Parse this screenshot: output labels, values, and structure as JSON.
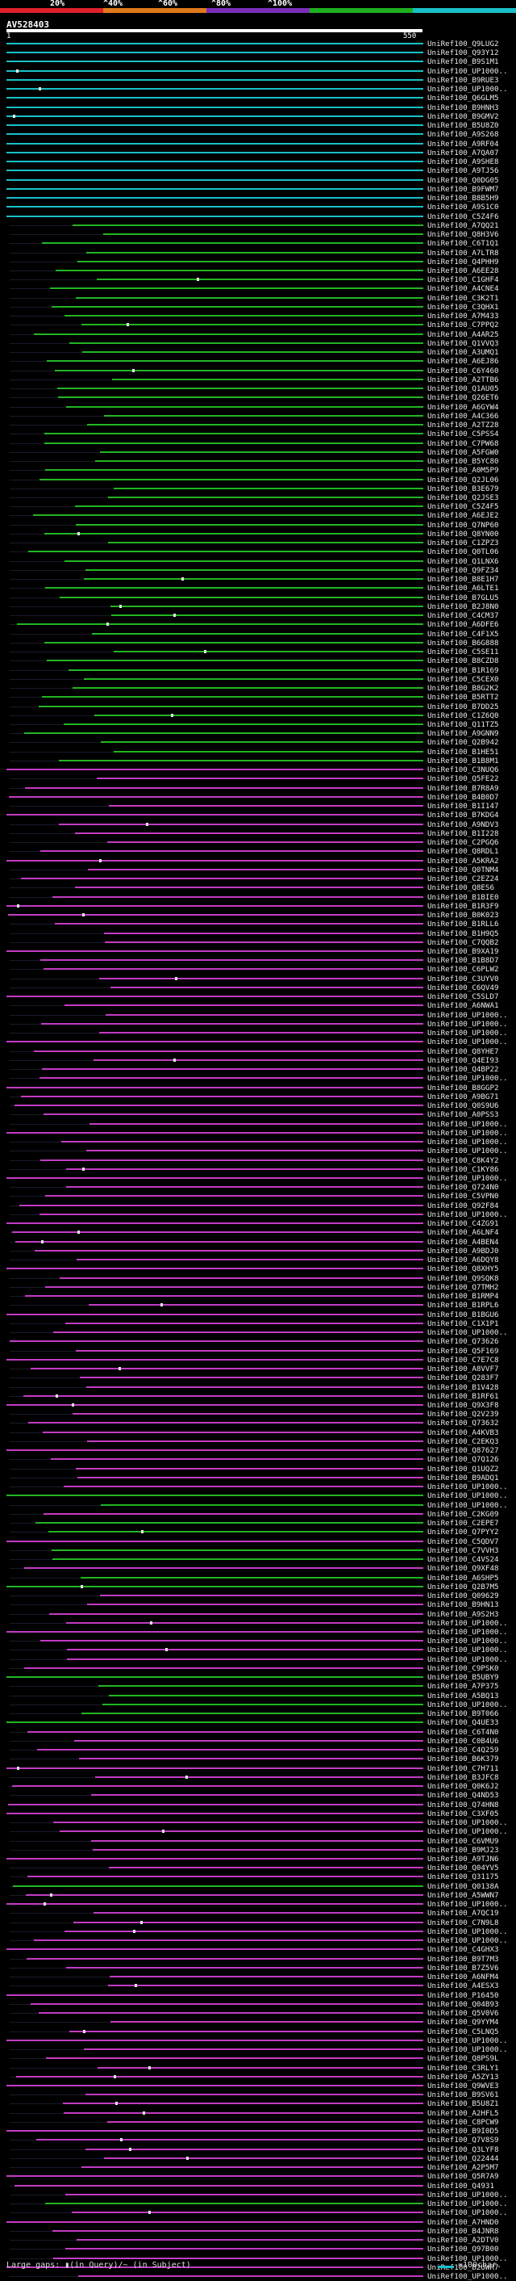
{
  "scale": {
    "labels": [
      "20%",
      "^40%",
      "^60%",
      "^80%",
      "^100%"
    ],
    "colors": [
      "#e0202a",
      "#e07a1a",
      "#7b2fb8",
      "#1fb01f",
      "#19c0c8"
    ]
  },
  "query": {
    "name": "AV528403",
    "start": "1",
    "end": "550"
  },
  "colors": {
    "high": "#19c0c8",
    "mid": "#22b522",
    "low": "#c23cc2",
    "gap": "#e8e8e8"
  },
  "hits": [
    "UniRef100_Q9LUG2",
    "UniRef100_Q93Y12",
    "UniRef100_B9S1M1",
    "UniRef100_UP1000..",
    "UniRef100_B9RUE3",
    "UniRef100_UP1000..",
    "UniRef100_Q6GLM5",
    "UniRef100_B9HNH3",
    "UniRef100_B9GMV2",
    "UniRef100_B5U8Z0",
    "UniRef100_A9S268",
    "UniRef100_A9RF04",
    "UniRef100_A7QA07",
    "UniRef100_A9SHE8",
    "UniRef100_A9TJ56",
    "UniRef100_Q0DG05",
    "UniRef100_B9FWM7",
    "UniRef100_B8B5H9",
    "UniRef100_A9S1C0",
    "UniRef100_C5Z4F6",
    "UniRef100_A7QQ21",
    "UniRef100_Q8H3V6",
    "UniRef100_C6T1Q1",
    "UniRef100_A7LTR8",
    "UniRef100_Q4PHH9",
    "UniRef100_A6EE28",
    "UniRef100_C1GHF4",
    "UniRef100_A4CNE4",
    "UniRef100_C3K2T1",
    "UniRef100_C3QHX1",
    "UniRef100_A7M433",
    "UniRef100_C7PPQ2",
    "UniRef100_A4AR25",
    "UniRef100_Q1VVQ3",
    "UniRef100_A3UMQ1",
    "UniRef100_A6EJ86",
    "UniRef100_C6Y460",
    "UniRef100_A2TTB6",
    "UniRef100_Q1AU05",
    "UniRef100_Q26ET6",
    "UniRef100_A6GYW4",
    "UniRef100_A4C366",
    "UniRef100_A2TZ28",
    "UniRef100_C5PSS4",
    "UniRef100_C7PW68",
    "UniRef100_A5FGW0",
    "UniRef100_B5YC80",
    "UniRef100_A0M5P9",
    "UniRef100_Q2JL06",
    "UniRef100_B3E679",
    "UniRef100_Q2JSE3",
    "UniRef100_C5Z4F5",
    "UniRef100_A6EJE2",
    "UniRef100_Q7NP60",
    "UniRef100_Q8YN00",
    "UniRef100_C1ZPZ3",
    "UniRef100_Q0TL06",
    "UniRef100_Q1LNX6",
    "UniRef100_Q9FZ34",
    "UniRef100_B8E1H7",
    "UniRef100_A6LTE1",
    "UniRef100_B7GLU5",
    "UniRef100_B2J8N0",
    "UniRef100_C4CM37",
    "UniRef100_A6DFE6",
    "UniRef100_C4F1X5",
    "UniRef100_B6G888",
    "UniRef100_C5SE11",
    "UniRef100_B8CZD8",
    "UniRef100_B1R169",
    "UniRef100_C5CEX0",
    "UniRef100_B8G2K2",
    "UniRef100_B5RTT2",
    "UniRef100_B7DD25",
    "UniRef100_C1Z6Q0",
    "UniRef100_Q11TZ5",
    "UniRef100_A9GNN9",
    "UniRef100_Q2B942",
    "UniRef100_B1HE51",
    "UniRef100_B1B8M1",
    "UniRef100_C3NUQ6",
    "UniRef100_Q5FE22",
    "UniRef100_B7R8A9",
    "UniRef100_B4B0D7",
    "UniRef100_B1I147",
    "UniRef100_B7KDG4",
    "UniRef100_A9NDV3",
    "UniRef100_B1I228",
    "UniRef100_C2PGQ6",
    "UniRef100_Q8RDL1",
    "UniRef100_A5KRA2",
    "UniRef100_Q0TNM4",
    "UniRef100_C2EZ24",
    "UniRef100_Q8ES6",
    "UniRef100_B1BIE0",
    "UniRef100_B1R3F9",
    "UniRef100_B0K023",
    "UniRef100_B1RLL6",
    "UniRef100_B1H9Q5",
    "UniRef100_C7QQB2",
    "UniRef100_B9XA19",
    "UniRef100_B1B8D7",
    "UniRef100_C6PLW2",
    "UniRef100_C3UYV0",
    "UniRef100_C6QV49",
    "UniRef100_C5SLD7",
    "UniRef100_A6NWA1",
    "UniRef100_UP1000..",
    "UniRef100_UP1000..",
    "UniRef100_UP1000..",
    "UniRef100_UP1000..",
    "UniRef100_Q8YHE7",
    "UniRef100_Q4EI93",
    "UniRef100_Q4BP22",
    "UniRef100_UP1000..",
    "UniRef100_B8GGP2",
    "UniRef100_A9BG71",
    "UniRef100_Q0S9U6",
    "UniRef100_A0PSS3",
    "UniRef100_UP1000..",
    "UniRef100_UP1000..",
    "UniRef100_UP1000..",
    "UniRef100_UP1000..",
    "UniRef100_C8K4Y2",
    "UniRef100_C1KY86",
    "UniRef100_UP1000..",
    "UniRef100_Q724N0",
    "UniRef100_C5VPN0",
    "UniRef100_Q92F84",
    "UniRef100_UP1000..",
    "UniRef100_C4ZG91",
    "UniRef100_A6LNF4",
    "UniRef100_A4BEN4",
    "UniRef100_A9BDJ0",
    "UniRef100_A6DQY8",
    "UniRef100_Q8XHY5",
    "UniRef100_Q9SQK8",
    "UniRef100_Q7TMH2",
    "UniRef100_B1RMP4",
    "UniRef100_B1RPL6",
    "UniRef100_B1BGU6",
    "UniRef100_C1X1P1",
    "UniRef100_UP1000..",
    "UniRef100_Q73626",
    "UniRef100_Q5F169",
    "UniRef100_C7E7C8",
    "UniRef100_A8VVF7",
    "UniRef100_Q283F7",
    "UniRef100_B1V428",
    "UniRef100_B1RF61",
    "UniRef100_Q9X3F8",
    "UniRef100_Q2V239",
    "UniRef100_Q73632",
    "UniRef100_A4KVB3",
    "UniRef100_C2EKQ3",
    "UniRef100_Q87627",
    "UniRef100_Q7Q126",
    "UniRef100_Q1UQZ2",
    "UniRef100_B9ADQ1",
    "UniRef100_UP1000..",
    "UniRef100_UP1000..",
    "UniRef100_UP1000..",
    "UniRef100_C2KG09",
    "UniRef100_C2EPE7",
    "UniRef100_Q7PYY2",
    "UniRef100_C5QDV7",
    "UniRef100_C7VVH3",
    "UniRef100_C4VS24",
    "UniRef100_Q9XF48",
    "UniRef100_A6SHP5",
    "UniRef100_Q2B7M5",
    "UniRef100_Q09629",
    "UniRef100_B9HN13",
    "UniRef100_A9S2H3",
    "UniRef100_UP1000..",
    "UniRef100_UP1000..",
    "UniRef100_UP1000..",
    "UniRef100_UP1000..",
    "UniRef100_UP1000..",
    "UniRef100_C9PSK0",
    "UniRef100_B5UBY9",
    "UniRef100_A7P375",
    "UniRef100_A5BQ13",
    "UniRef100_UP1000..",
    "UniRef100_B9T066",
    "UniRef100_Q4UE33",
    "UniRef100_C6T4N0",
    "UniRef100_C0B4U6",
    "UniRef100_C4Q259",
    "UniRef100_B6K379",
    "UniRef100_C7H711",
    "UniRef100_B3JFC8",
    "UniRef100_Q0K6J2",
    "UniRef100_Q4ND53",
    "UniRef100_Q74HN8",
    "UniRef100_C3XF05",
    "UniRef100_UP1000..",
    "UniRef100_UP1000..",
    "UniRef100_C6VMU9",
    "UniRef100_B9MJ23",
    "UniRef100_A9TJN6",
    "UniRef100_Q04YV5",
    "UniRef100_Q31175",
    "UniRef100_Q0138A",
    "UniRef100_A5WWN7",
    "UniRef100_UP1000..",
    "UniRef100_A7QC19",
    "UniRef100_C7N9L8",
    "UniRef100_UP1000..",
    "UniRef100_UP1000..",
    "UniRef100_C4GHX3",
    "UniRef100_B9T7M3",
    "UniRef100_B7Z5V6",
    "UniRef100_A6NFM4",
    "UniRef100_A4ESX3",
    "UniRef100_P16450",
    "UniRef100_Q04B93",
    "UniRef100_Q5V0V6",
    "UniRef100_Q9YYM4",
    "UniRef100_C5LNQ5",
    "UniRef100_UP1000..",
    "UniRef100_UP1000..",
    "UniRef100_Q8PS9L",
    "UniRef100_C3RLY1",
    "UniRef100_A5ZY13",
    "UniRef100_Q9WVE3",
    "UniRef100_B9SV61",
    "UniRef100_B5U8Z1",
    "UniRef100_A2HFL5",
    "UniRef100_C8PCW9",
    "UniRef100_B9I0D5",
    "UniRef100_Q7V8S9",
    "UniRef100_Q3LYF8",
    "UniRef100_Q22444",
    "UniRef100_A2P5M7",
    "UniRef100_Q5R7A9",
    "UniRef100_Q4931",
    "UniRef100_UP1000..",
    "UniRef100_UP1000..",
    "UniRef100_UP1000..",
    "UniRef100_A7HND0",
    "UniRef100_B4JNR8",
    "UniRef100_A2DTV0",
    "UniRef100_Q97B00",
    "UniRef100_UP1000..",
    "UniRef100_B2UWR7",
    "UniRef100_UP1000.."
  ],
  "footer": {
    "text": "Large gaps: ▮(in Query)/~ (in Subject)",
    "legend": "=100char."
  }
}
